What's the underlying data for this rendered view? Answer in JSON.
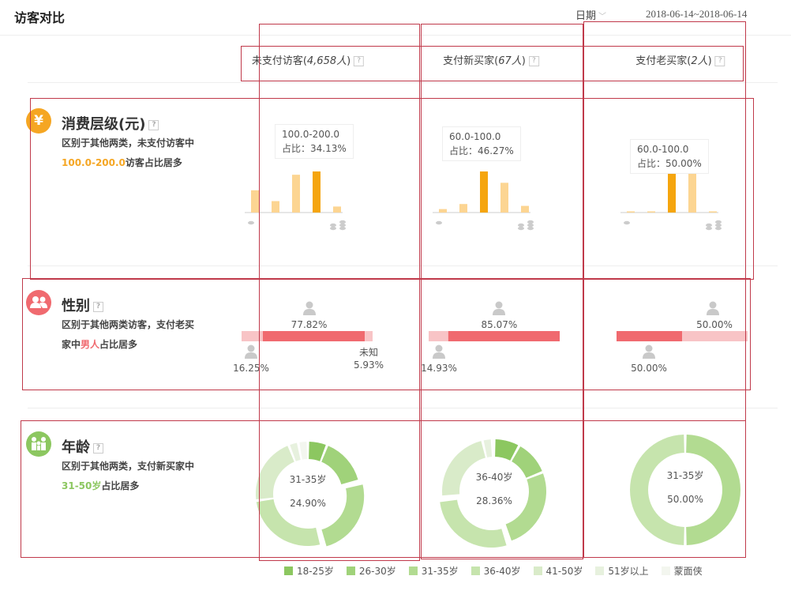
{
  "header": {
    "title": "访客对比",
    "date_label": "日期",
    "date_range": "2018-06-14~2018-06-14"
  },
  "columns": [
    {
      "label": "未支付访客(",
      "count": "4,658人",
      "close": ")"
    },
    {
      "label": "支付新买家(",
      "count": "67人",
      "close": ")"
    },
    {
      "label": "支付老买家(",
      "count": "2人",
      "close": ")"
    }
  ],
  "help_icon": "?",
  "sections": {
    "spend": {
      "icon": "yen-icon",
      "icon_glyph": "¥",
      "color": "#f5a623",
      "title": "消费层级(元)",
      "desc_pre": "区别于其他两类，未支付访客中",
      "desc_hl": "100.0-200.0",
      "desc_post": "访客占比居多",
      "hl_color": "#f5a623"
    },
    "gender": {
      "icon": "people-icon",
      "color": "#f06a6f",
      "title": "性别",
      "desc_pre": "区别于其他两类访客，支付老买家中",
      "desc_hl": "男人",
      "desc_post": "占比居多",
      "hl_color": "#f06a6f"
    },
    "age": {
      "icon": "family-icon",
      "color": "#8cc760",
      "title": "年龄",
      "desc_pre": "区别于其他两类，支付新买家中",
      "desc_hl": "31-50岁",
      "desc_post": "占比居多",
      "hl_color": "#8cc760"
    }
  },
  "chart_data": [
    {
      "type": "bar",
      "chart": "spend",
      "column": "未支付访客",
      "values": [
        18.5,
        9.5,
        31.4,
        34.13,
        5,
        1.5
      ],
      "highlight_index": 3,
      "tooltip": {
        "range": "100.0-200.0",
        "share": "占比：34.13%"
      },
      "colors": {
        "normal": "#fcd592",
        "highlight": "#f5a50e"
      }
    },
    {
      "type": "bar",
      "chart": "spend",
      "column": "支付新买家",
      "values": [
        3.9,
        9.6,
        46.27,
        33.5,
        7.5,
        1.5
      ],
      "highlight_index": 2,
      "tooltip": {
        "range": "60.0-100.0",
        "share": "占比：46.27%"
      },
      "colors": {
        "normal": "#fcd592",
        "highlight": "#f5a50e"
      }
    },
    {
      "type": "bar",
      "chart": "spend",
      "column": "支付老买家",
      "values": [
        0.5,
        0.5,
        50,
        50,
        0.3,
        0.3
      ],
      "highlight_index": 2,
      "tooltip": {
        "range": "60.0-100.0",
        "share": "占比：50.00%"
      },
      "colors": {
        "normal": "#fcd592",
        "highlight": "#f5a50e"
      }
    },
    {
      "type": "bar",
      "chart": "gender",
      "column": "未支付访客",
      "segments": [
        {
          "key": "female",
          "value": 16.25,
          "label": "16.25%"
        },
        {
          "key": "male",
          "value": 77.82,
          "label": "77.82%"
        },
        {
          "key": "unknown",
          "value": 5.93,
          "label": "5.93%",
          "name": "未知"
        }
      ]
    },
    {
      "type": "bar",
      "chart": "gender",
      "column": "支付新买家",
      "segments": [
        {
          "key": "female",
          "value": 14.93,
          "label": "14.93%"
        },
        {
          "key": "male",
          "value": 85.07,
          "label": "85.07%"
        }
      ]
    },
    {
      "type": "bar",
      "chart": "gender",
      "column": "支付老买家",
      "segments": [
        {
          "key": "male",
          "value": 50.0,
          "label": "50.00%"
        },
        {
          "key": "female",
          "value": 50.0,
          "label": "50.00%"
        }
      ]
    },
    {
      "type": "pie",
      "chart": "age",
      "column": "未支付访客",
      "values": [
        6,
        15,
        24.9,
        27,
        21.1,
        3,
        3
      ],
      "highlight_index": 2,
      "center": {
        "category": "31-35岁",
        "value": "24.90%"
      }
    },
    {
      "type": "pie",
      "chart": "age",
      "column": "支付新买家",
      "values": [
        8,
        11,
        26,
        28.36,
        23,
        3,
        0.64
      ],
      "highlight_index": 3,
      "center": {
        "category": "36-40岁",
        "value": "28.36%"
      }
    },
    {
      "type": "pie",
      "chart": "age",
      "column": "支付老买家",
      "values": [
        0,
        0,
        50,
        50,
        0,
        0,
        0
      ],
      "highlight_index": -1,
      "center": {
        "category": "31-35岁",
        "value": "50.00%"
      }
    }
  ],
  "age_legend": [
    {
      "label": "18-25岁",
      "color": "#8cc760"
    },
    {
      "label": "26-30岁",
      "color": "#a0d27a"
    },
    {
      "label": "31-35岁",
      "color": "#b2db91"
    },
    {
      "label": "36-40岁",
      "color": "#c6e4ad"
    },
    {
      "label": "41-50岁",
      "color": "#d9ebc9"
    },
    {
      "label": "51岁以上",
      "color": "#e7f1de"
    },
    {
      "label": "蒙面侠",
      "color": "#f3f6ef"
    }
  ],
  "gender_colors": {
    "male": "#f06a6f",
    "other": "#f8c4c6"
  }
}
